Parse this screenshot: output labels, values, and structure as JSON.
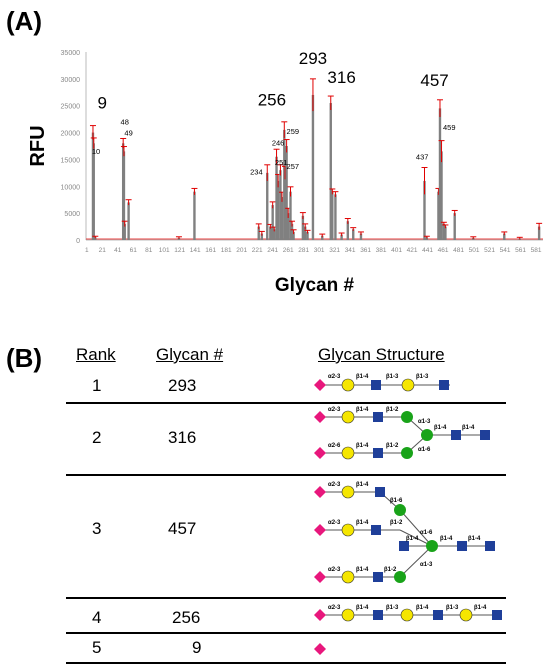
{
  "panel_a_label": "(A)",
  "panel_b_label": "(B)",
  "colors": {
    "bar": "#808080",
    "error": "#e00000",
    "sialic": "#e8177c",
    "galactose": "#f5e600",
    "glcnac": "#1f3f99",
    "mannose": "#19a319"
  },
  "chart_data": {
    "type": "bar",
    "title": "",
    "xlabel": "Glycan #",
    "ylabel": "RFU",
    "ylim": [
      0,
      35000
    ],
    "xlim": [
      0,
      590
    ],
    "yticks": [
      0,
      5000,
      10000,
      15000,
      20000,
      25000,
      30000,
      35000
    ],
    "xticks": [
      1,
      21,
      41,
      61,
      81,
      101,
      121,
      141,
      161,
      181,
      201,
      221,
      241,
      261,
      281,
      301,
      321,
      341,
      361,
      381,
      401,
      421,
      441,
      461,
      481,
      501,
      521,
      541,
      561,
      581
    ],
    "grid": false,
    "points": [
      {
        "x": 9,
        "y": 20000,
        "err": 1300
      },
      {
        "x": 10,
        "y": 18000,
        "err": 1000
      },
      {
        "x": 12,
        "y": 500,
        "err": 200
      },
      {
        "x": 48,
        "y": 18000,
        "err": 900
      },
      {
        "x": 49,
        "y": 16500,
        "err": 900
      },
      {
        "x": 50,
        "y": 3000,
        "err": 500
      },
      {
        "x": 55,
        "y": 7000,
        "err": 500
      },
      {
        "x": 120,
        "y": 400,
        "err": 200
      },
      {
        "x": 140,
        "y": 9000,
        "err": 600
      },
      {
        "x": 223,
        "y": 2500,
        "err": 500
      },
      {
        "x": 227,
        "y": 1200,
        "err": 400
      },
      {
        "x": 234,
        "y": 12500,
        "err": 1500
      },
      {
        "x": 238,
        "y": 2500,
        "err": 400
      },
      {
        "x": 241,
        "y": 6500,
        "err": 600
      },
      {
        "x": 243,
        "y": 2000,
        "err": 400
      },
      {
        "x": 246,
        "y": 15500,
        "err": 1400
      },
      {
        "x": 248,
        "y": 11000,
        "err": 1200
      },
      {
        "x": 251,
        "y": 13000,
        "err": 1000
      },
      {
        "x": 253,
        "y": 8000,
        "err": 900
      },
      {
        "x": 256,
        "y": 20500,
        "err": 1500
      },
      {
        "x": 257,
        "y": 12500,
        "err": 1200
      },
      {
        "x": 259,
        "y": 17500,
        "err": 1200
      },
      {
        "x": 261,
        "y": 5000,
        "err": 900
      },
      {
        "x": 264,
        "y": 9000,
        "err": 900
      },
      {
        "x": 266,
        "y": 3000,
        "err": 500
      },
      {
        "x": 268,
        "y": 1500,
        "err": 400
      },
      {
        "x": 280,
        "y": 4500,
        "err": 600
      },
      {
        "x": 283,
        "y": 2500,
        "err": 500
      },
      {
        "x": 286,
        "y": 1500,
        "err": 300
      },
      {
        "x": 293,
        "y": 27000,
        "err": 3000
      },
      {
        "x": 305,
        "y": 800,
        "err": 300
      },
      {
        "x": 316,
        "y": 25500,
        "err": 1300
      },
      {
        "x": 318,
        "y": 9000,
        "err": 500
      },
      {
        "x": 322,
        "y": 8500,
        "err": 500
      },
      {
        "x": 330,
        "y": 1000,
        "err": 300
      },
      {
        "x": 338,
        "y": 3500,
        "err": 500
      },
      {
        "x": 345,
        "y": 2000,
        "err": 300
      },
      {
        "x": 355,
        "y": 1200,
        "err": 300
      },
      {
        "x": 437,
        "y": 11000,
        "err": 2500
      },
      {
        "x": 440,
        "y": 500,
        "err": 200
      },
      {
        "x": 455,
        "y": 9000,
        "err": 600
      },
      {
        "x": 457,
        "y": 24500,
        "err": 1600
      },
      {
        "x": 459,
        "y": 16500,
        "err": 2000
      },
      {
        "x": 462,
        "y": 3000,
        "err": 300
      },
      {
        "x": 464,
        "y": 2500,
        "err": 300
      },
      {
        "x": 476,
        "y": 5000,
        "err": 500
      },
      {
        "x": 500,
        "y": 400,
        "err": 200
      },
      {
        "x": 540,
        "y": 1200,
        "err": 300
      },
      {
        "x": 560,
        "y": 300,
        "err": 200
      },
      {
        "x": 585,
        "y": 2500,
        "err": 600
      }
    ],
    "labels": [
      {
        "text": "9",
        "x": 21,
        "y": 24500,
        "size": "big"
      },
      {
        "text": "10",
        "x": 13,
        "y": 16000,
        "size": "small"
      },
      {
        "text": "48",
        "x": 50,
        "y": 21500,
        "size": "small"
      },
      {
        "text": "49",
        "x": 55,
        "y": 19500,
        "size": "small"
      },
      {
        "text": "256",
        "x": 240,
        "y": 25000,
        "size": "big"
      },
      {
        "text": "293",
        "x": 293,
        "y": 32800,
        "size": "big"
      },
      {
        "text": "316",
        "x": 330,
        "y": 29200,
        "size": "big"
      },
      {
        "text": "457",
        "x": 450,
        "y": 28700,
        "size": "big"
      },
      {
        "text": "246",
        "x": 248,
        "y": 17600,
        "size": "small"
      },
      {
        "text": "259",
        "x": 267,
        "y": 19700,
        "size": "small"
      },
      {
        "text": "251",
        "x": 252,
        "y": 14000,
        "size": "small"
      },
      {
        "text": "257",
        "x": 267,
        "y": 13200,
        "size": "small"
      },
      {
        "text": "234",
        "x": 220,
        "y": 12200,
        "size": "small"
      },
      {
        "text": "437",
        "x": 434,
        "y": 15000,
        "size": "small"
      },
      {
        "text": "459",
        "x": 469,
        "y": 20500,
        "size": "small"
      }
    ]
  },
  "table": {
    "headers": {
      "rank": "Rank",
      "glycan": "Glycan #",
      "structure": "Glycan Structure"
    },
    "rows": [
      {
        "rank": "1",
        "glycan": "293"
      },
      {
        "rank": "2",
        "glycan": "316"
      },
      {
        "rank": "3",
        "glycan": "457"
      },
      {
        "rank": "4",
        "glycan": "256"
      },
      {
        "rank": "5",
        "glycan": "9"
      }
    ],
    "linkages": {
      "r1": [
        "α2-3",
        "β1-4",
        "β1-3",
        "β1-3"
      ],
      "r2_top": [
        "α2-3",
        "β1-4",
        "β1-2",
        "α1-3"
      ],
      "r2_core": [
        "β1-4",
        "β1-4"
      ],
      "r2_bottom": [
        "α2-6",
        "β1-4",
        "β1-2",
        "α1-6"
      ],
      "r3_a": [
        "α2-3",
        "β1-4",
        "β1-6"
      ],
      "r3_b": [
        "α2-3",
        "β1-4",
        "β1-2",
        "α1-6"
      ],
      "r3_core": [
        "β1-4",
        "β1-4",
        "β1-4"
      ],
      "r3_c": [
        "α2-3",
        "β1-4",
        "β1-2",
        "α1-3"
      ],
      "r4": [
        "α2-3",
        "β1-4",
        "β1-3",
        "β1-4",
        "β1-3",
        "β1-4"
      ]
    }
  }
}
